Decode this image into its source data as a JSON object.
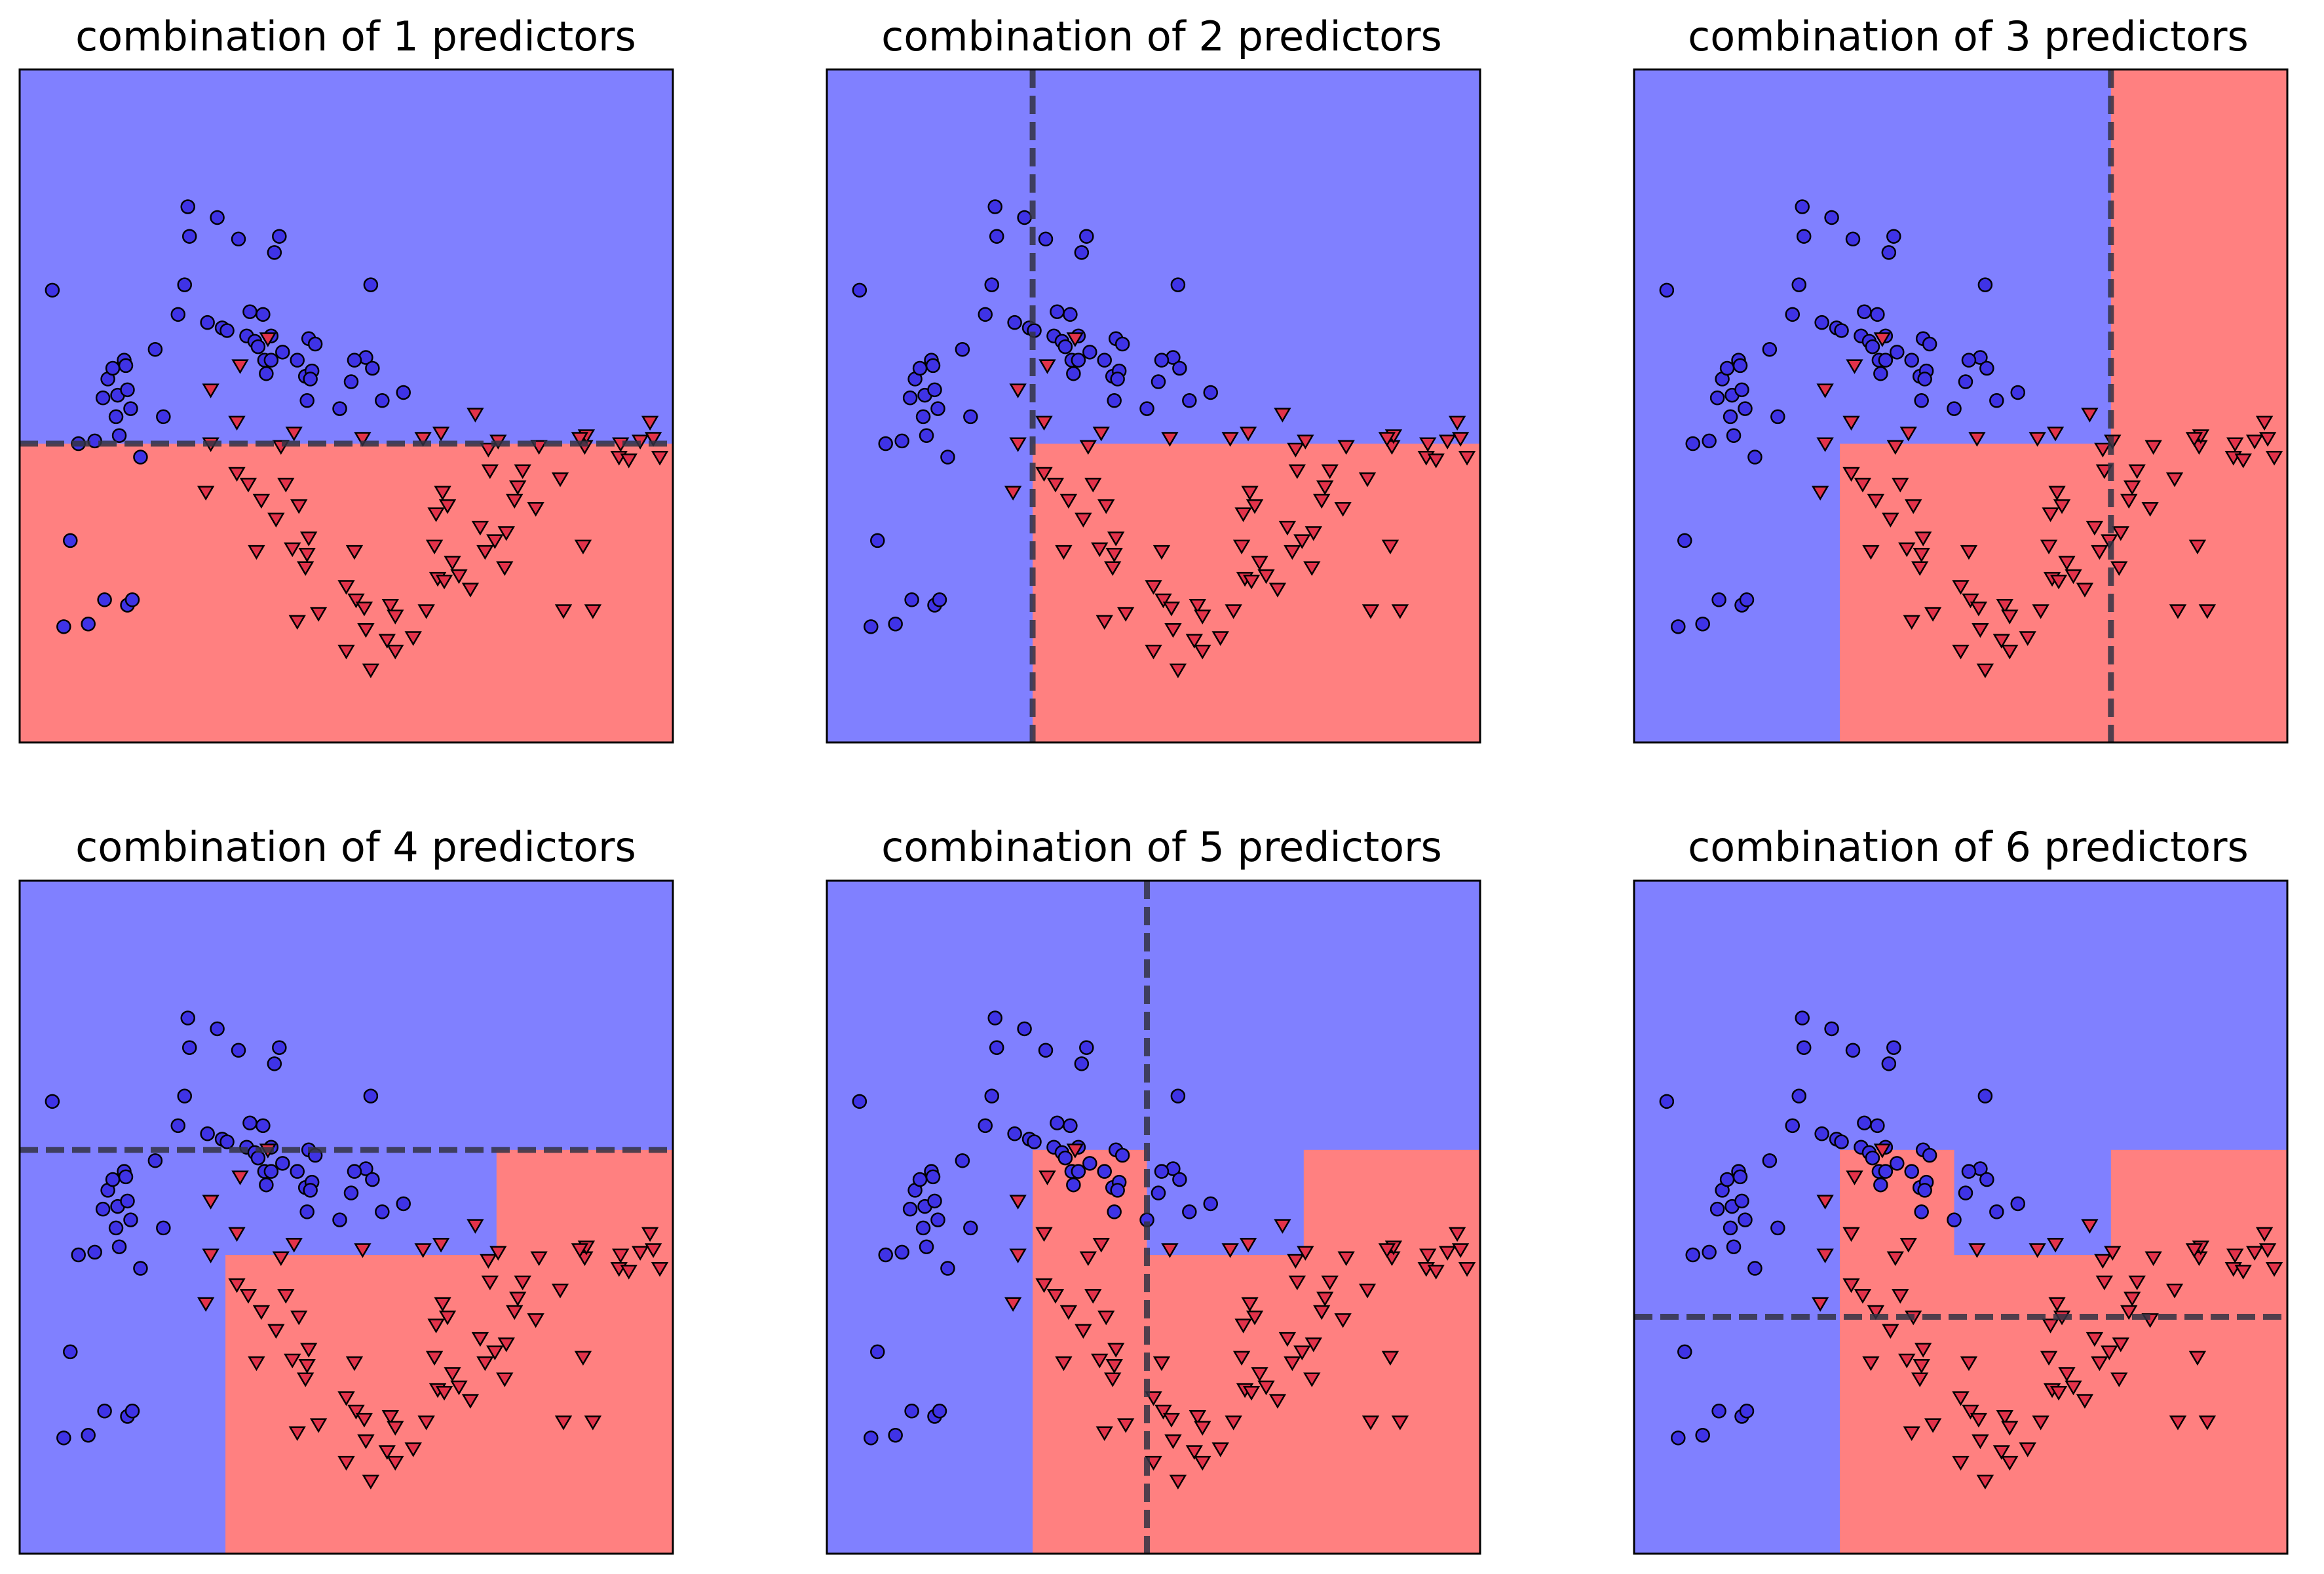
{
  "figure": {
    "colors": {
      "region_class0": "#8080ff",
      "region_class1": "#ff8080",
      "marker_class0": "#3f33e6",
      "marker_class1": "#e3324a",
      "marker_edge": "#000000",
      "split_line": "#333344"
    }
  },
  "chart_data": [
    {
      "type": "scatter",
      "title": "combination of 1 predictors",
      "xlim": [
        -1.5,
        2.5
      ],
      "ylim": [
        -1.0,
        1.5
      ],
      "xticks": [],
      "yticks": [],
      "grid": false,
      "legend": "none",
      "split": {
        "orientation": "horizontal",
        "value": 0.11
      },
      "regions": [
        {
          "class": 0,
          "x": [
            -1.5,
            2.5
          ],
          "y": [
            0.11,
            1.5
          ]
        },
        {
          "class": 1,
          "x": [
            -1.5,
            2.5
          ],
          "y": [
            -1.0,
            0.11
          ]
        }
      ]
    },
    {
      "type": "scatter",
      "title": "combination of 2 predictors",
      "xlim": [
        -1.5,
        2.5
      ],
      "ylim": [
        -1.0,
        1.5
      ],
      "xticks": [],
      "yticks": [],
      "grid": false,
      "legend": "none",
      "split": {
        "orientation": "vertical",
        "value": -0.24
      },
      "regions": [
        {
          "class": 0,
          "x": [
            -1.5,
            2.5
          ],
          "y": [
            -1.0,
            1.5
          ]
        },
        {
          "class": 1,
          "x": [
            -0.24,
            2.5
          ],
          "y": [
            -1.0,
            0.11
          ]
        }
      ]
    },
    {
      "type": "scatter",
      "title": "combination of 3 predictors",
      "xlim": [
        -1.5,
        2.5
      ],
      "ylim": [
        -1.0,
        1.5
      ],
      "xticks": [],
      "yticks": [],
      "grid": false,
      "legend": "none",
      "split": {
        "orientation": "vertical",
        "value": 1.42
      },
      "regions": [
        {
          "class": 0,
          "x": [
            -1.5,
            2.5
          ],
          "y": [
            -1.0,
            1.5
          ]
        },
        {
          "class": 1,
          "x": [
            -0.24,
            1.42
          ],
          "y": [
            -1.0,
            0.11
          ]
        },
        {
          "class": 1,
          "x": [
            1.42,
            2.5
          ],
          "y": [
            -1.0,
            1.5
          ]
        }
      ]
    },
    {
      "type": "scatter",
      "title": "combination of 4 predictors",
      "xlim": [
        -1.5,
        2.5
      ],
      "ylim": [
        -1.0,
        1.5
      ],
      "xticks": [],
      "yticks": [],
      "grid": false,
      "legend": "none",
      "split": {
        "orientation": "horizontal",
        "value": 0.5
      },
      "regions": [
        {
          "class": 0,
          "x": [
            -1.5,
            2.5
          ],
          "y": [
            -1.0,
            1.5
          ]
        },
        {
          "class": 1,
          "x": [
            -0.24,
            2.5
          ],
          "y": [
            -1.0,
            0.11
          ]
        },
        {
          "class": 1,
          "x": [
            1.42,
            2.5
          ],
          "y": [
            0.11,
            0.5
          ]
        }
      ]
    },
    {
      "type": "scatter",
      "title": "combination of 5 predictors",
      "xlim": [
        -1.5,
        2.5
      ],
      "ylim": [
        -1.0,
        1.5
      ],
      "xticks": [],
      "yticks": [],
      "grid": false,
      "legend": "none",
      "split": {
        "orientation": "vertical",
        "value": 0.46
      },
      "regions": [
        {
          "class": 0,
          "x": [
            -1.5,
            2.5
          ],
          "y": [
            -1.0,
            1.5
          ]
        },
        {
          "class": 1,
          "x": [
            -0.24,
            2.5
          ],
          "y": [
            -1.0,
            0.11
          ]
        },
        {
          "class": 1,
          "x": [
            1.42,
            2.5
          ],
          "y": [
            0.11,
            0.5
          ]
        },
        {
          "class": 1,
          "x": [
            -0.24,
            0.46
          ],
          "y": [
            0.11,
            0.5
          ]
        }
      ]
    },
    {
      "type": "scatter",
      "title": "combination of 6 predictors",
      "xlim": [
        -1.5,
        2.5
      ],
      "ylim": [
        -1.0,
        1.5
      ],
      "xticks": [],
      "yticks": [],
      "grid": false,
      "legend": "none",
      "split": {
        "orientation": "horizontal",
        "value": -0.12
      },
      "regions": [
        {
          "class": 0,
          "x": [
            -1.5,
            2.5
          ],
          "y": [
            -1.0,
            1.5
          ]
        },
        {
          "class": 1,
          "x": [
            -0.24,
            2.5
          ],
          "y": [
            -1.0,
            0.11
          ]
        },
        {
          "class": 1,
          "x": [
            1.42,
            2.5
          ],
          "y": [
            0.11,
            0.5
          ]
        },
        {
          "class": 1,
          "x": [
            -0.24,
            0.46
          ],
          "y": [
            0.11,
            0.5
          ]
        }
      ]
    }
  ],
  "points": {
    "class0": [
      [
        -1.3,
        0.68
      ],
      [
        -1.14,
        0.11
      ],
      [
        -1.04,
        0.12
      ],
      [
        -0.99,
        0.28
      ],
      [
        -0.96,
        0.35
      ],
      [
        -0.93,
        0.39
      ],
      [
        -0.91,
        0.21
      ],
      [
        -0.9,
        0.29
      ],
      [
        -0.89,
        0.14
      ],
      [
        -0.86,
        0.42
      ],
      [
        -0.85,
        0.4
      ],
      [
        -0.84,
        0.31
      ],
      [
        -0.82,
        0.24
      ],
      [
        -0.76,
        0.06
      ],
      [
        -0.67,
        0.46
      ],
      [
        -0.62,
        0.21
      ],
      [
        -0.53,
        0.59
      ],
      [
        -0.46,
        0.88
      ],
      [
        -0.47,
        0.99
      ],
      [
        -0.35,
        0.56
      ],
      [
        -0.29,
        0.95
      ],
      [
        -0.26,
        0.54
      ],
      [
        -0.23,
        0.53
      ],
      [
        -0.11,
        0.51
      ],
      [
        -0.06,
        0.49
      ],
      [
        -0.09,
        0.6
      ],
      [
        -0.04,
        0.47
      ],
      [
        0.01,
        0.37
      ],
      [
        0.0,
        0.42
      ],
      [
        0.04,
        0.42
      ],
      [
        -0.01,
        0.59
      ],
      [
        0.06,
        0.82
      ],
      [
        0.11,
        0.45
      ],
      [
        0.2,
        0.42
      ],
      [
        0.25,
        0.36
      ],
      [
        0.26,
        0.27
      ],
      [
        0.29,
        0.38
      ],
      [
        0.27,
        0.5
      ],
      [
        0.31,
        0.48
      ],
      [
        0.46,
        0.24
      ],
      [
        0.53,
        0.34
      ],
      [
        0.62,
        0.43
      ],
      [
        0.66,
        0.39
      ],
      [
        0.72,
        0.27
      ],
      [
        0.85,
        0.3
      ],
      [
        0.65,
        0.7
      ],
      [
        -0.98,
        -0.47
      ],
      [
        -1.08,
        -0.56
      ],
      [
        -1.23,
        -0.57
      ],
      [
        -1.19,
        -0.25
      ],
      [
        -0.84,
        -0.49
      ],
      [
        -0.81,
        -0.47
      ],
      [
        -0.16,
        0.87
      ],
      [
        0.09,
        0.88
      ],
      [
        0.04,
        0.51
      ],
      [
        -0.49,
        0.7
      ],
      [
        0.28,
        0.35
      ],
      [
        0.55,
        0.42
      ]
    ],
    "class1": [
      [
        -0.33,
        0.31
      ],
      [
        -0.15,
        0.4
      ],
      [
        0.02,
        0.5
      ],
      [
        -0.33,
        0.11
      ],
      [
        -0.17,
        0.19
      ],
      [
        0.1,
        0.1
      ],
      [
        0.18,
        0.15
      ],
      [
        0.6,
        0.13
      ],
      [
        0.97,
        0.13
      ],
      [
        1.08,
        0.15
      ],
      [
        1.37,
        0.09
      ],
      [
        1.43,
        0.12
      ],
      [
        1.68,
        0.1
      ],
      [
        1.96,
        0.1
      ],
      [
        2.17,
        0.06
      ],
      [
        2.18,
        0.11
      ],
      [
        2.23,
        0.05
      ],
      [
        2.36,
        0.19
      ],
      [
        2.38,
        0.13
      ],
      [
        2.42,
        0.06
      ],
      [
        1.97,
        0.14
      ],
      [
        2.3,
        0.12
      ],
      [
        1.93,
        0.13
      ],
      [
        1.29,
        0.22
      ],
      [
        -0.17,
        0.0
      ],
      [
        -0.1,
        -0.04
      ],
      [
        -0.02,
        -0.1
      ],
      [
        0.07,
        -0.17
      ],
      [
        0.13,
        -0.04
      ],
      [
        0.17,
        -0.28
      ],
      [
        0.21,
        -0.12
      ],
      [
        0.26,
        -0.3
      ],
      [
        0.2,
        -0.55
      ],
      [
        0.25,
        -0.35
      ],
      [
        0.33,
        -0.52
      ],
      [
        0.55,
        -0.29
      ],
      [
        0.56,
        -0.47
      ],
      [
        0.61,
        -0.5
      ],
      [
        0.62,
        -0.58
      ],
      [
        0.77,
        -0.49
      ],
      [
        0.8,
        -0.53
      ],
      [
        0.75,
        -0.62
      ],
      [
        0.8,
        -0.66
      ],
      [
        0.91,
        -0.61
      ],
      [
        0.99,
        -0.51
      ],
      [
        1.04,
        -0.27
      ],
      [
        1.06,
        -0.39
      ],
      [
        1.1,
        -0.4
      ],
      [
        1.15,
        -0.33
      ],
      [
        1.26,
        -0.43
      ],
      [
        1.35,
        -0.29
      ],
      [
        1.32,
        -0.2
      ],
      [
        1.41,
        -0.25
      ],
      [
        1.48,
        -0.22
      ],
      [
        1.53,
        -0.1
      ],
      [
        1.55,
        -0.05
      ],
      [
        1.58,
        0.01
      ],
      [
        1.66,
        -0.13
      ],
      [
        1.81,
        -0.02
      ],
      [
        1.95,
        -0.27
      ],
      [
        1.83,
        -0.51
      ],
      [
        2.01,
        -0.51
      ],
      [
        0.5,
        -0.66
      ],
      [
        1.19,
        -0.38
      ],
      [
        1.09,
        -0.07
      ],
      [
        0.5,
        -0.42
      ],
      [
        0.65,
        -0.73
      ],
      [
        1.05,
        -0.15
      ],
      [
        1.12,
        -0.12
      ],
      [
        1.38,
        0.01
      ],
      [
        1.47,
        -0.35
      ],
      [
        0.27,
        -0.24
      ],
      [
        -0.36,
        -0.07
      ],
      [
        -0.05,
        -0.29
      ]
    ],
    "highlighted": [
      {
        "panel": 0,
        "class0": [
          [
            -1.19,
            -0.15
          ],
          [
            -1.24,
            -0.11
          ],
          [
            -1.12,
            -0.13
          ],
          [
            -1.07,
            -0.08
          ],
          [
            -1.02,
            -0.07
          ],
          [
            0.35,
            -0.03
          ],
          [
            0.67,
            -0.08
          ],
          [
            0.41,
            0.12
          ],
          [
            0.66,
            0.06
          ],
          [
            -0.1,
            -0.16
          ],
          [
            -0.3,
            0.24
          ],
          [
            0.0,
            -0.02
          ],
          [
            0.15,
            -0.24
          ],
          [
            1.4,
            -0.05
          ],
          [
            0.95,
            -0.19
          ]
        ],
        "class1": [
          [
            -0.55,
            0.38
          ],
          [
            -0.39,
            0.25
          ],
          [
            -0.42,
            0.31
          ],
          [
            0.18,
            0.47
          ],
          [
            0.05,
            0.56
          ],
          [
            -0.4,
            0.55
          ],
          [
            -0.39,
            0.31
          ],
          [
            1.42,
            0.14
          ],
          [
            1.58,
            0.17
          ],
          [
            1.73,
            0.2
          ],
          [
            2.19,
            0.14
          ],
          [
            2.12,
            0.14
          ],
          [
            2.15,
            0.24
          ],
          [
            2.22,
            0.15
          ],
          [
            2.16,
            0.09
          ],
          [
            2.03,
            0.13
          ],
          [
            2.04,
            0.2
          ]
        ]
      }
    ]
  }
}
